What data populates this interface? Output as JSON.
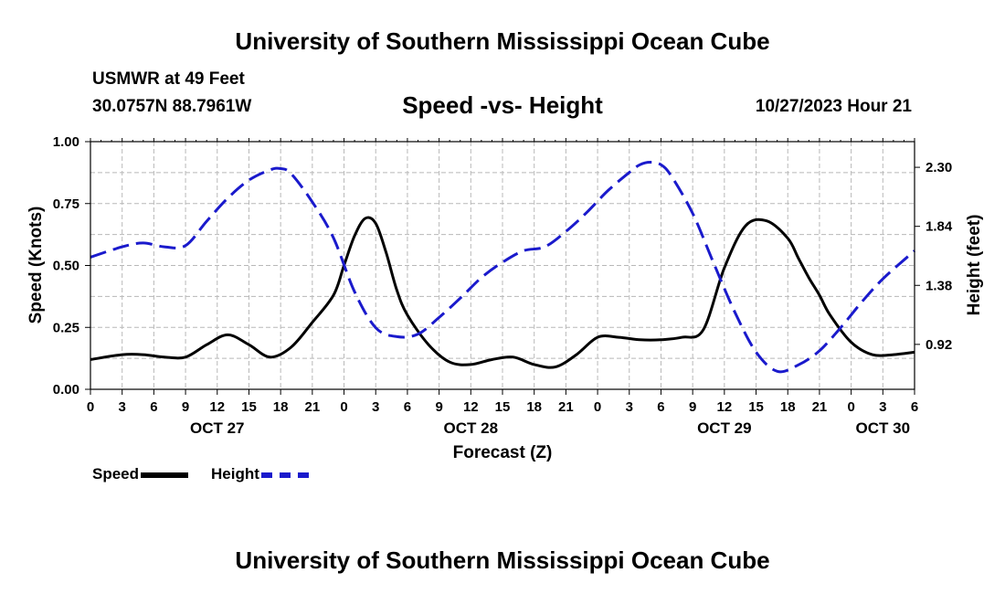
{
  "header": {
    "title": "University of Southern Mississippi Ocean Cube",
    "station": "USMWR at 49 Feet",
    "coords": "30.0757N  88.7961W",
    "subtitle": "Speed -vs- Height",
    "datetime": "10/27/2023 Hour 21"
  },
  "footer": {
    "title": "University of Southern Mississippi Ocean Cube"
  },
  "legend": {
    "speed_label": "Speed",
    "height_label": "Height"
  },
  "colors": {
    "speed": "#000000",
    "height": "#1a1acc",
    "grid": "#b8b8b8"
  },
  "chart_data": {
    "type": "line",
    "xlabel": "Forecast (Z)",
    "ylabel_left": "Speed (Knots)",
    "ylabel_right": "Height (feet)",
    "x_unit": "hours since OCT 27 00Z",
    "xlim": [
      0,
      78
    ],
    "ylim_left": [
      0,
      1.0
    ],
    "ylim_right": [
      0.57,
      2.5
    ],
    "x_ticks": [
      0,
      3,
      6,
      9,
      12,
      15,
      18,
      21,
      24,
      27,
      30,
      33,
      36,
      39,
      42,
      45,
      48,
      51,
      54,
      57,
      60,
      63,
      66,
      69,
      72,
      75,
      78
    ],
    "x_tick_labels": [
      "0",
      "3",
      "6",
      "9",
      "12",
      "15",
      "18",
      "21",
      "0",
      "3",
      "6",
      "9",
      "12",
      "15",
      "18",
      "21",
      "0",
      "3",
      "6",
      "9",
      "12",
      "15",
      "18",
      "21",
      "0",
      "3",
      "6"
    ],
    "date_labels": [
      {
        "x": 12,
        "label": "OCT 27"
      },
      {
        "x": 36,
        "label": "OCT 28"
      },
      {
        "x": 60,
        "label": "OCT 29"
      },
      {
        "x": 75,
        "label": "OCT 30"
      }
    ],
    "y_left_ticks": [
      0,
      0.25,
      0.5,
      0.75,
      1.0
    ],
    "y_left_tick_labels": [
      "0.00",
      "0.25",
      "0.50",
      "0.75",
      "1.00"
    ],
    "y_right_ticks": [
      0.92,
      1.38,
      1.84,
      2.3
    ],
    "y_right_tick_labels": [
      "0.92",
      "1.38",
      "1.84",
      "2.30"
    ],
    "grid": true,
    "legend_position": "bottom-left",
    "series": [
      {
        "name": "Speed",
        "axis": "left",
        "style": "solid",
        "x": [
          0,
          3,
          5,
          7,
          9,
          11,
          13,
          15,
          17,
          19,
          21,
          23,
          24,
          25,
          26,
          27,
          28,
          29,
          30,
          32,
          34,
          36,
          38,
          40,
          42,
          44,
          46,
          48,
          50,
          52,
          54,
          56,
          58,
          60,
          62,
          64,
          66,
          67,
          68,
          69,
          70,
          72,
          74,
          76,
          78
        ],
        "values": [
          0.12,
          0.14,
          0.14,
          0.13,
          0.13,
          0.18,
          0.22,
          0.18,
          0.13,
          0.17,
          0.27,
          0.38,
          0.5,
          0.62,
          0.69,
          0.67,
          0.55,
          0.4,
          0.3,
          0.18,
          0.11,
          0.1,
          0.12,
          0.13,
          0.1,
          0.09,
          0.14,
          0.21,
          0.21,
          0.2,
          0.2,
          0.21,
          0.24,
          0.49,
          0.66,
          0.68,
          0.61,
          0.53,
          0.45,
          0.38,
          0.3,
          0.19,
          0.14,
          0.14,
          0.15
        ]
      },
      {
        "name": "Height",
        "axis": "right",
        "style": "dashed",
        "x": [
          0,
          3,
          5,
          7,
          9,
          11,
          13,
          15,
          17,
          18,
          19,
          21,
          23,
          25,
          27,
          29,
          31,
          33,
          35,
          37,
          39,
          41,
          43,
          45,
          47,
          49,
          51,
          52,
          53,
          54,
          55,
          57,
          59,
          61,
          63,
          65,
          67,
          69,
          71,
          73,
          75,
          78
        ],
        "values": [
          1.6,
          1.68,
          1.71,
          1.68,
          1.69,
          1.88,
          2.06,
          2.2,
          2.28,
          2.29,
          2.25,
          2.03,
          1.75,
          1.33,
          1.05,
          0.98,
          1.0,
          1.13,
          1.28,
          1.44,
          1.56,
          1.65,
          1.68,
          1.8,
          1.95,
          2.12,
          2.26,
          2.32,
          2.34,
          2.32,
          2.23,
          1.94,
          1.55,
          1.17,
          0.86,
          0.71,
          0.76,
          0.87,
          1.05,
          1.25,
          1.43,
          1.65
        ]
      }
    ]
  }
}
